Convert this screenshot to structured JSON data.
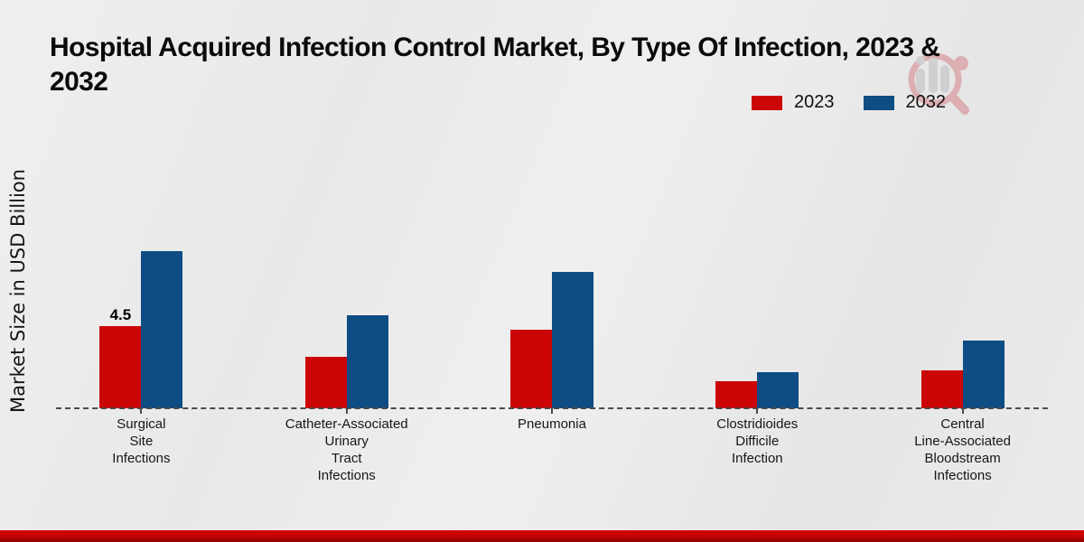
{
  "header": {
    "title_line1": "Hospital Acquired Infection Control Market, By Type Of Infection, 2023 &",
    "title_line2": "2032"
  },
  "y_axis_label": "Market Size in USD Billion",
  "legend": [
    {
      "label": "2023",
      "color": "#cc0606"
    },
    {
      "label": "2032",
      "color": "#0e4c84"
    }
  ],
  "watermark": {
    "name": "market-research-magnifier-logo",
    "gray": "#9a9aa0",
    "red": "#c5303c"
  },
  "colors": {
    "series_2023": "#cc0606",
    "series_2032": "#0e4c84",
    "background": "#eaeaea",
    "bottom_strip": "#c10404",
    "baseline": "#4a4a4a"
  },
  "chart_data": {
    "type": "bar",
    "title": "Hospital Acquired Infection Control Market, By Type Of Infection, 2023 & 2032",
    "ylabel": "Market Size in USD Billion",
    "categories": [
      [
        "Surgical",
        "Site",
        "Infections"
      ],
      [
        "Catheter-Associated",
        "Urinary",
        "Tract",
        "Infections"
      ],
      [
        "Pneumonia"
      ],
      [
        "Clostridioides",
        "Difficile",
        "Infection"
      ],
      [
        "Central",
        "Line-Associated",
        "Bloodstream",
        "Infections"
      ]
    ],
    "series": [
      {
        "name": "2023",
        "color": "#cc0606",
        "values": [
          4.5,
          2.8,
          4.3,
          1.5,
          2.1
        ]
      },
      {
        "name": "2032",
        "color": "#0e4c84",
        "values": [
          8.6,
          5.1,
          7.5,
          2.0,
          3.7
        ]
      }
    ],
    "data_labels": [
      {
        "series": "2023",
        "category_index": 0,
        "text": "4.5"
      }
    ],
    "ylim": [
      0,
      9
    ],
    "grid": false,
    "axis_line": "dashed",
    "legend_position": "top-right"
  }
}
